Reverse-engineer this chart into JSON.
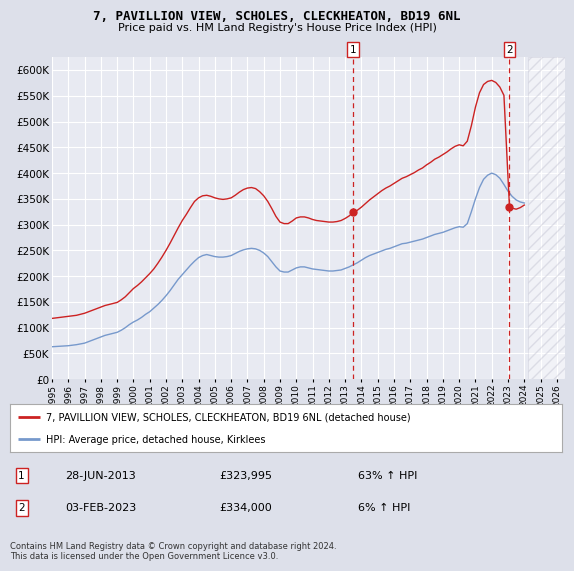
{
  "title": "7, PAVILLION VIEW, SCHOLES, CLECKHEATON, BD19 6NL",
  "subtitle": "Price paid vs. HM Land Registry's House Price Index (HPI)",
  "ylim": [
    0,
    625000
  ],
  "yticks": [
    0,
    50000,
    100000,
    150000,
    200000,
    250000,
    300000,
    350000,
    400000,
    450000,
    500000,
    550000,
    600000
  ],
  "xlim_start": 1995.0,
  "xlim_end": 2026.5,
  "background_color": "#dde0ea",
  "plot_bg_color": "#e8eaf2",
  "grid_color": "#ffffff",
  "hpi_color": "#7799cc",
  "price_color": "#cc2222",
  "transaction1_date": 2013.49,
  "transaction1_price": 323995,
  "transaction1_label": "1",
  "transaction2_date": 2023.09,
  "transaction2_price": 334000,
  "transaction2_label": "2",
  "legend_line1": "7, PAVILLION VIEW, SCHOLES, CLECKHEATON, BD19 6NL (detached house)",
  "legend_line2": "HPI: Average price, detached house, Kirklees",
  "annotation1_date": "28-JUN-2013",
  "annotation1_price": "£323,995",
  "annotation1_hpi": "63% ↑ HPI",
  "annotation2_date": "03-FEB-2023",
  "annotation2_price": "£334,000",
  "annotation2_hpi": "6% ↑ HPI",
  "footer": "Contains HM Land Registry data © Crown copyright and database right 2024.\nThis data is licensed under the Open Government Licence v3.0.",
  "hpi_data_x": [
    1995.0,
    1995.25,
    1995.5,
    1995.75,
    1996.0,
    1996.25,
    1996.5,
    1996.75,
    1997.0,
    1997.25,
    1997.5,
    1997.75,
    1998.0,
    1998.25,
    1998.5,
    1998.75,
    1999.0,
    1999.25,
    1999.5,
    1999.75,
    2000.0,
    2000.25,
    2000.5,
    2000.75,
    2001.0,
    2001.25,
    2001.5,
    2001.75,
    2002.0,
    2002.25,
    2002.5,
    2002.75,
    2003.0,
    2003.25,
    2003.5,
    2003.75,
    2004.0,
    2004.25,
    2004.5,
    2004.75,
    2005.0,
    2005.25,
    2005.5,
    2005.75,
    2006.0,
    2006.25,
    2006.5,
    2006.75,
    2007.0,
    2007.25,
    2007.5,
    2007.75,
    2008.0,
    2008.25,
    2008.5,
    2008.75,
    2009.0,
    2009.25,
    2009.5,
    2009.75,
    2010.0,
    2010.25,
    2010.5,
    2010.75,
    2011.0,
    2011.25,
    2011.5,
    2011.75,
    2012.0,
    2012.25,
    2012.5,
    2012.75,
    2013.0,
    2013.25,
    2013.5,
    2013.75,
    2014.0,
    2014.25,
    2014.5,
    2014.75,
    2015.0,
    2015.25,
    2015.5,
    2015.75,
    2016.0,
    2016.25,
    2016.5,
    2016.75,
    2017.0,
    2017.25,
    2017.5,
    2017.75,
    2018.0,
    2018.25,
    2018.5,
    2018.75,
    2019.0,
    2019.25,
    2019.5,
    2019.75,
    2020.0,
    2020.25,
    2020.5,
    2020.75,
    2021.0,
    2021.25,
    2021.5,
    2021.75,
    2022.0,
    2022.25,
    2022.5,
    2022.75,
    2023.0,
    2023.25,
    2023.5,
    2023.75,
    2024.0
  ],
  "hpi_data_y": [
    63000,
    63500,
    64000,
    64500,
    65000,
    66000,
    67000,
    68500,
    70000,
    73000,
    76000,
    79000,
    82000,
    85000,
    87000,
    89000,
    91000,
    95000,
    100000,
    106000,
    111000,
    115000,
    120000,
    126000,
    131000,
    138000,
    145000,
    153000,
    162000,
    172000,
    183000,
    194000,
    203000,
    212000,
    221000,
    229000,
    236000,
    240000,
    242000,
    240000,
    238000,
    237000,
    237000,
    238000,
    240000,
    244000,
    248000,
    251000,
    253000,
    254000,
    253000,
    250000,
    245000,
    238000,
    228000,
    218000,
    210000,
    208000,
    208000,
    212000,
    216000,
    218000,
    218000,
    216000,
    214000,
    213000,
    212000,
    211000,
    210000,
    210000,
    211000,
    212000,
    215000,
    218000,
    222000,
    226000,
    231000,
    236000,
    240000,
    243000,
    246000,
    249000,
    252000,
    254000,
    257000,
    260000,
    263000,
    264000,
    266000,
    268000,
    270000,
    272000,
    275000,
    278000,
    281000,
    283000,
    285000,
    288000,
    291000,
    294000,
    296000,
    295000,
    302000,
    325000,
    350000,
    372000,
    388000,
    396000,
    400000,
    397000,
    390000,
    378000,
    365000,
    355000,
    348000,
    344000,
    342000
  ],
  "price_data_x": [
    1995.0,
    1995.25,
    1995.5,
    1995.75,
    1996.0,
    1996.25,
    1996.5,
    1996.75,
    1997.0,
    1997.25,
    1997.5,
    1997.75,
    1998.0,
    1998.25,
    1998.5,
    1998.75,
    1999.0,
    1999.25,
    1999.5,
    1999.75,
    2000.0,
    2000.25,
    2000.5,
    2000.75,
    2001.0,
    2001.25,
    2001.5,
    2001.75,
    2002.0,
    2002.25,
    2002.5,
    2002.75,
    2003.0,
    2003.25,
    2003.5,
    2003.75,
    2004.0,
    2004.25,
    2004.5,
    2004.75,
    2005.0,
    2005.25,
    2005.5,
    2005.75,
    2006.0,
    2006.25,
    2006.5,
    2006.75,
    2007.0,
    2007.25,
    2007.5,
    2007.75,
    2008.0,
    2008.25,
    2008.5,
    2008.75,
    2009.0,
    2009.25,
    2009.5,
    2009.75,
    2010.0,
    2010.25,
    2010.5,
    2010.75,
    2011.0,
    2011.25,
    2011.5,
    2011.75,
    2012.0,
    2012.25,
    2012.5,
    2012.75,
    2013.0,
    2013.25,
    2013.49,
    2013.75,
    2014.0,
    2014.25,
    2014.5,
    2014.75,
    2015.0,
    2015.25,
    2015.5,
    2015.75,
    2016.0,
    2016.25,
    2016.5,
    2016.75,
    2017.0,
    2017.25,
    2017.5,
    2017.75,
    2018.0,
    2018.25,
    2018.5,
    2018.75,
    2019.0,
    2019.25,
    2019.5,
    2019.75,
    2020.0,
    2020.25,
    2020.5,
    2020.75,
    2021.0,
    2021.25,
    2021.5,
    2021.75,
    2022.0,
    2022.25,
    2022.5,
    2022.75,
    2023.09,
    2023.25,
    2023.5,
    2023.75,
    2024.0
  ],
  "price_data_y": [
    118000,
    119000,
    120000,
    121000,
    122000,
    123000,
    124000,
    126000,
    128000,
    131000,
    134000,
    137000,
    140000,
    143000,
    145000,
    147000,
    149000,
    154000,
    160000,
    168000,
    176000,
    182000,
    189000,
    197000,
    205000,
    214000,
    225000,
    237000,
    250000,
    264000,
    279000,
    294000,
    308000,
    320000,
    333000,
    345000,
    352000,
    356000,
    357000,
    355000,
    352000,
    350000,
    349000,
    350000,
    352000,
    357000,
    363000,
    368000,
    371000,
    372000,
    370000,
    364000,
    356000,
    345000,
    331000,
    316000,
    305000,
    302000,
    302000,
    307000,
    313000,
    315000,
    315000,
    313000,
    310000,
    308000,
    307000,
    306000,
    305000,
    305000,
    306000,
    308000,
    312000,
    317000,
    323995,
    328000,
    334000,
    341000,
    348000,
    354000,
    360000,
    366000,
    371000,
    375000,
    380000,
    385000,
    390000,
    393000,
    397000,
    401000,
    406000,
    410000,
    416000,
    421000,
    427000,
    431000,
    436000,
    441000,
    447000,
    452000,
    455000,
    453000,
    462000,
    492000,
    528000,
    556000,
    572000,
    578000,
    580000,
    576000,
    567000,
    551000,
    334000,
    332000,
    330000,
    333000,
    338000
  ]
}
